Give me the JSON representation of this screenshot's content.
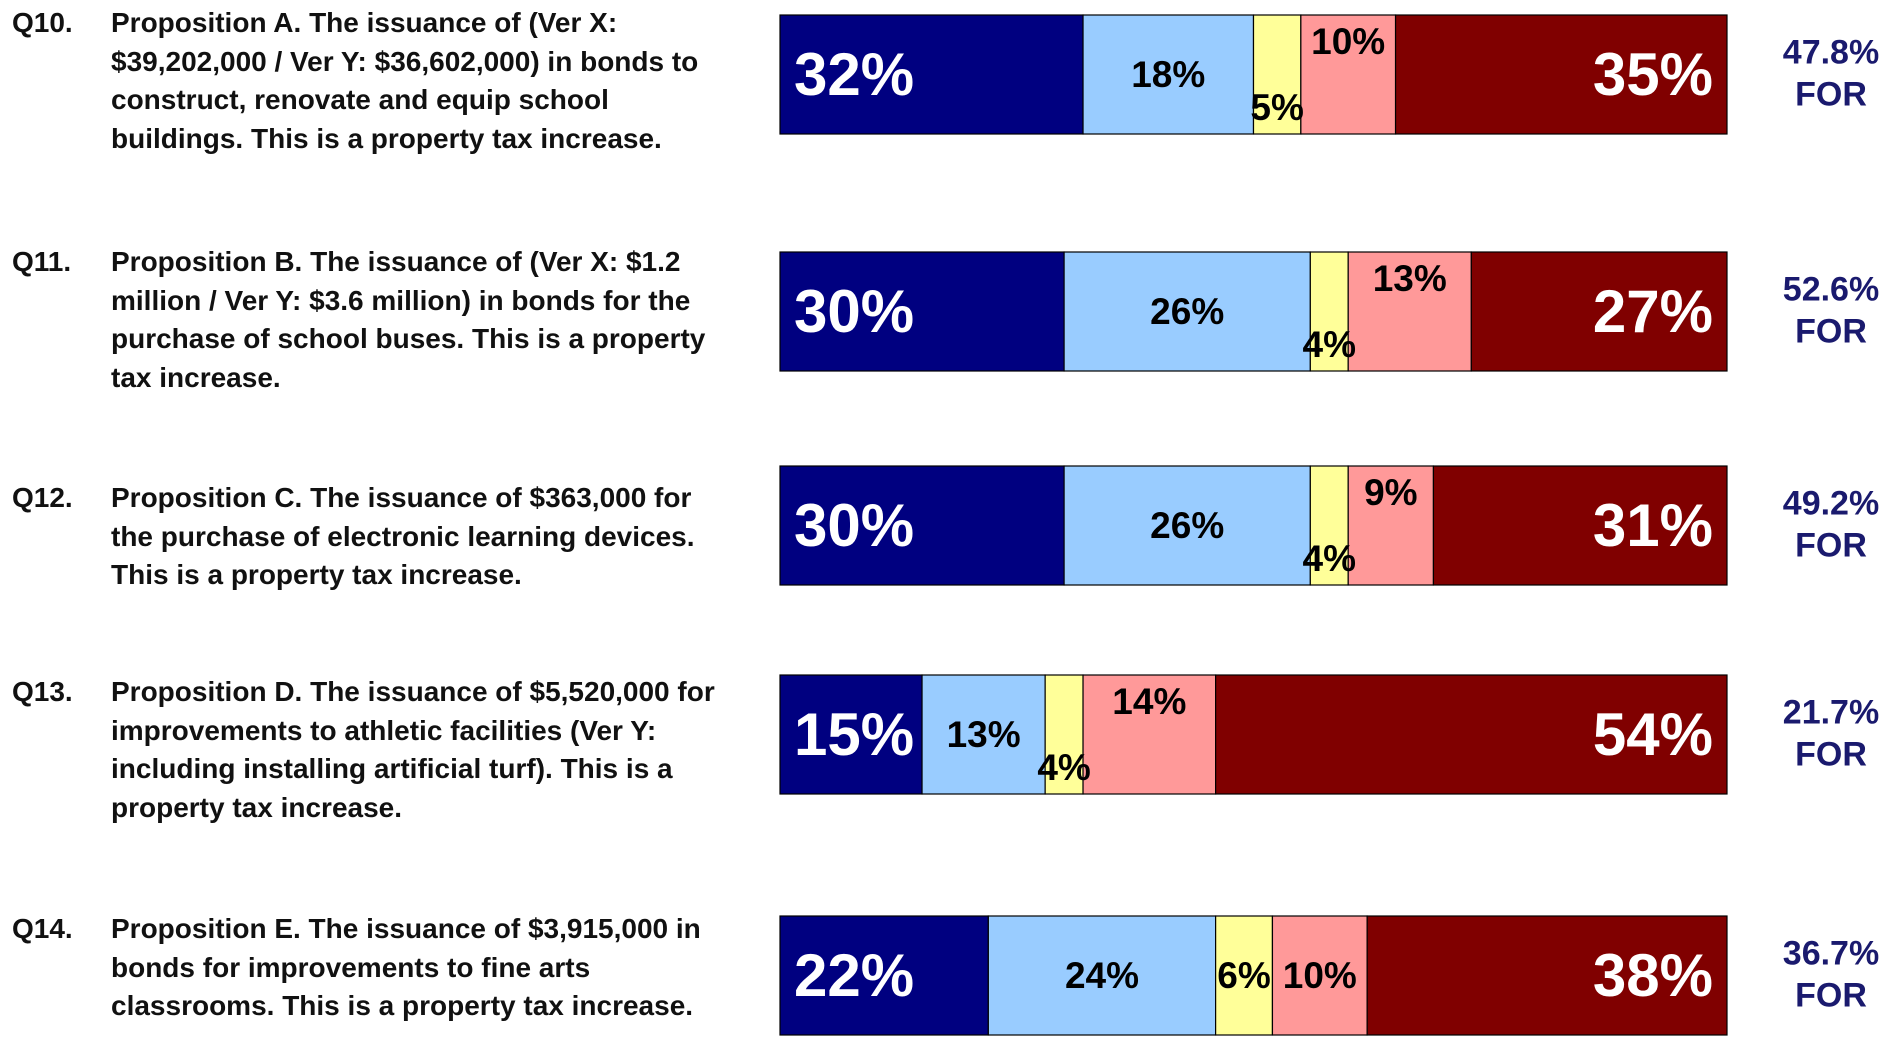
{
  "chart_data": {
    "type": "stacked-bar-horizontal",
    "question_numbers": [
      "Q10.",
      "Q11.",
      "Q12.",
      "Q13.",
      "Q14."
    ],
    "categories": [
      "Proposition A. The issuance of (Ver X: $39,202,000 / Ver Y: $36,602,000) in bonds to construct, renovate and equip school buildings. This is a property tax increase.",
      "Proposition B. The issuance of (Ver X: $1.2 million / Ver Y: $3.6 million) in bonds for the purchase of school buses. This is a property tax increase.",
      "Proposition C. The issuance of $363,000 for the purchase of electronic learning devices. This is a property tax increase.",
      "Proposition D. The issuance of $5,520,000 for improvements to athletic facilities (Ver Y: including installing artificial turf). This is a property tax increase.",
      "Proposition E. The issuance of $3,915,000 in bonds for improvements to fine arts classrooms. This is a property tax increase."
    ],
    "xlim": [
      0,
      100
    ],
    "series": [
      {
        "color": "#000080",
        "values": [
          32,
          30,
          30,
          15,
          22
        ],
        "value_labels": [
          "32%",
          "30%",
          "30%",
          "15%",
          "22%"
        ]
      },
      {
        "color": "#99ccff",
        "values": [
          18,
          26,
          26,
          13,
          24
        ],
        "value_labels": [
          "18%",
          "26%",
          "26%",
          "13%",
          "24%"
        ]
      },
      {
        "color": "#ffff99",
        "values": [
          5,
          4,
          4,
          4,
          6
        ],
        "value_labels": [
          "5%",
          "4%",
          "4%",
          "4%",
          "6%"
        ]
      },
      {
        "color": "#ff9999",
        "values": [
          10,
          13,
          9,
          14,
          10
        ],
        "value_labels": [
          "10%",
          "13%",
          "9%",
          "14%",
          "10%"
        ]
      },
      {
        "color": "#800000",
        "values": [
          35,
          27,
          31,
          54,
          38
        ],
        "value_labels": [
          "35%",
          "27%",
          "31%",
          "54%",
          "38%"
        ]
      }
    ],
    "annotations": [
      {
        "value": 47.8,
        "label": "47.8%"
      },
      {
        "value": 52.6,
        "label": "52.6%"
      },
      {
        "value": 49.2,
        "label": "49.2%"
      },
      {
        "value": 21.7,
        "label": "21.7%"
      },
      {
        "value": 36.7,
        "label": "36.7%"
      }
    ],
    "annotation_suffix": "FOR",
    "annotation_color": "#1a1a6e"
  }
}
